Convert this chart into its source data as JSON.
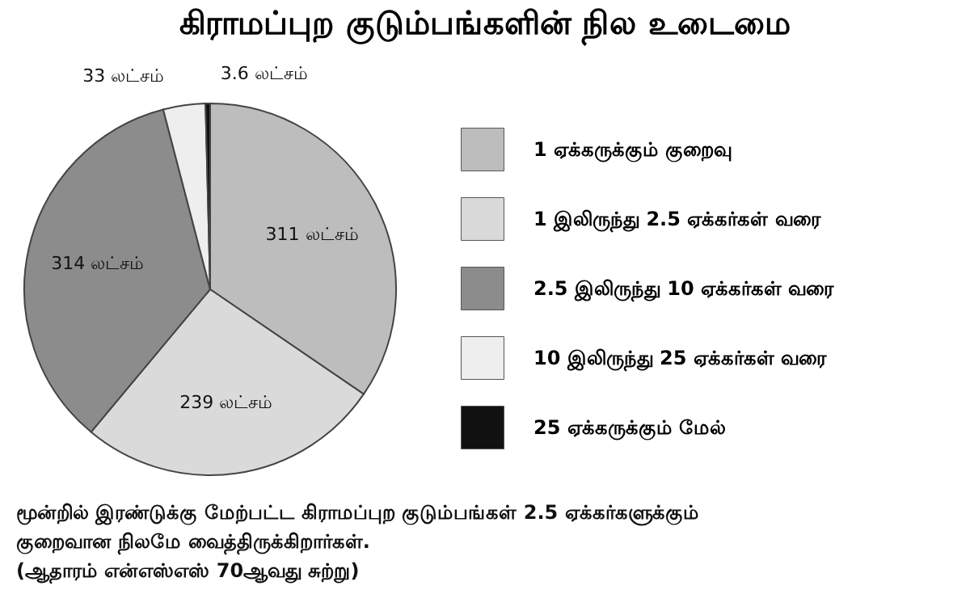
{
  "chart_data": {
    "type": "pie",
    "title": "கிராமப்புற குடும்பங்களின் நில உடைமை",
    "categories": [
      "1 ஏக்கருக்கும் குறைவு",
      "1 இலிருந்து 2.5 ஏக்கர்கள் வரை",
      "2.5 இலிருந்து 10 ஏக்கர்கள் வரை",
      "10 இலிருந்து 25 ஏக்கர்கள் வரை",
      "25 ஏக்கருக்கும் மேல்"
    ],
    "values": [
      311,
      239,
      314,
      33,
      3.6
    ],
    "value_labels": [
      "311 லட்சம்",
      "239 லட்சம்",
      "314 லட்சம்",
      "33 லட்சம்",
      "3.6 லட்சம்"
    ],
    "colors": [
      "#bdbdbd",
      "#dadada",
      "#8c8c8c",
      "#eeeeee",
      "#111111"
    ],
    "legend": "right",
    "annotations": [
      "மூன்றில் இரண்டுக்கு மேற்பட்ட கிராமப்புற குடும்பங்கள் 2.5 ஏக்கர்களுக்கும் குறைவான நிலமே வைத்திருக்கிறார்கள்.",
      "(ஆதாரம் என்எஸ்எஸ் 70ஆவது சுற்று)"
    ]
  }
}
